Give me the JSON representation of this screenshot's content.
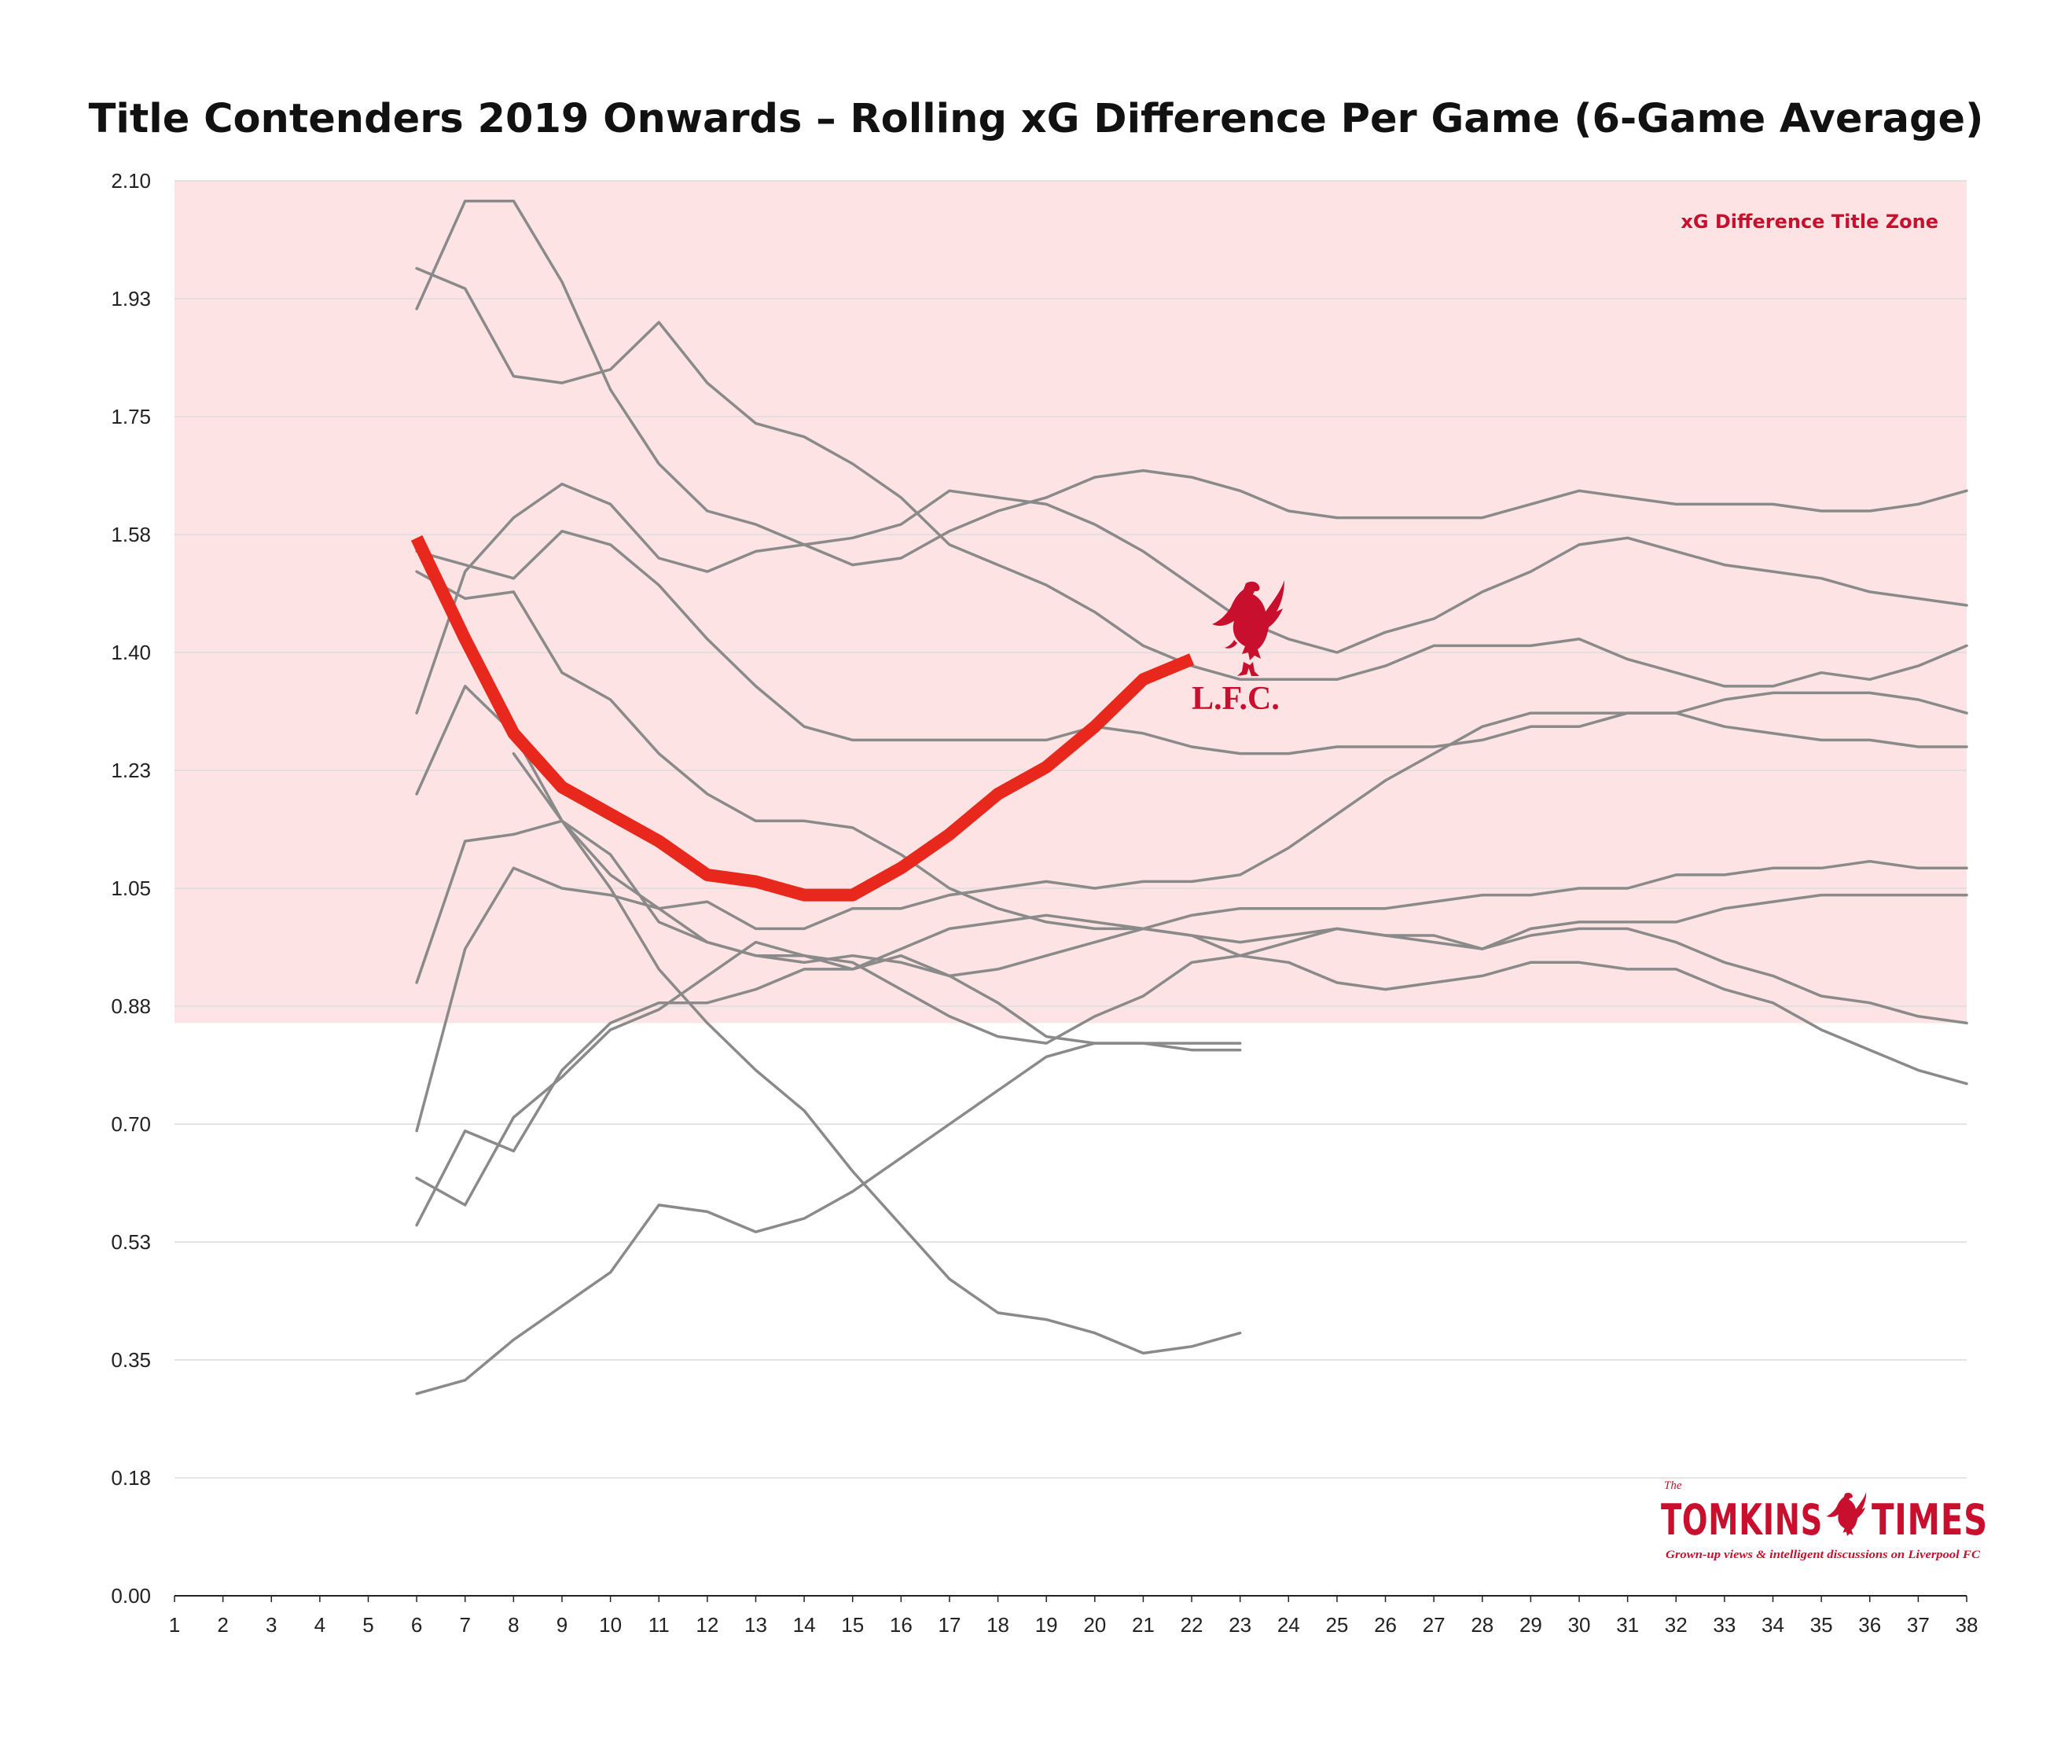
{
  "colors": {
    "zone_fill": "#fde3e3",
    "zone_text": "#c8102e",
    "highlight": "#e8281c",
    "other_series": "#8a8a8a",
    "grid": "#dcdcdc",
    "axis": "#222222",
    "brand": "#c8102e"
  },
  "logos": {
    "lfc_wordmark": "L.F.C.",
    "brand_prefix": "The",
    "brand_name": "TOMKINS",
    "brand_name_2": "TIMES",
    "brand_tagline": "Grown-up views & intelligent discussions on Liverpool FC"
  },
  "chart_data": {
    "type": "line",
    "title": "Title Contenders 2019 Onwards – Rolling xG Difference Per Game (6-Game Average)",
    "xlabel": "",
    "ylabel": "",
    "xlim": [
      1,
      38
    ],
    "ylim": [
      0,
      2.1
    ],
    "x_ticks": [
      1,
      2,
      3,
      4,
      5,
      6,
      7,
      8,
      9,
      10,
      11,
      12,
      13,
      14,
      15,
      16,
      17,
      18,
      19,
      20,
      21,
      22,
      23,
      24,
      25,
      26,
      27,
      28,
      29,
      30,
      31,
      32,
      33,
      34,
      35,
      36,
      37,
      38
    ],
    "y_ticks": [
      "0.00",
      "0.18",
      "0.35",
      "0.53",
      "0.70",
      "0.88",
      "1.05",
      "1.23",
      "1.40",
      "1.58",
      "1.75",
      "1.93",
      "2.10"
    ],
    "y_tick_values": [
      0,
      0.175,
      0.35,
      0.525,
      0.7,
      0.875,
      1.05,
      1.225,
      1.4,
      1.575,
      1.75,
      1.925,
      2.1
    ],
    "grid": true,
    "zone": {
      "label": "xG Difference Title Zone",
      "y_from": 0.85,
      "y_to": 2.1
    },
    "highlight_series": {
      "x": [
        6,
        7,
        8,
        9,
        10,
        11,
        12,
        13,
        14,
        15,
        16,
        17,
        18,
        19,
        20,
        21,
        22
      ],
      "values": [
        1.57,
        1.42,
        1.28,
        1.2,
        1.16,
        1.12,
        1.07,
        1.06,
        1.04,
        1.04,
        1.08,
        1.13,
        1.19,
        1.23,
        1.29,
        1.36,
        1.39
      ]
    },
    "other_series": [
      {
        "x": [
          6,
          7,
          8,
          9,
          10,
          11,
          12,
          13,
          14,
          15,
          16,
          17,
          18,
          19,
          20,
          21,
          22,
          23,
          24,
          25,
          26,
          27,
          28,
          29,
          30,
          31,
          32,
          33,
          34,
          35,
          36,
          37,
          38
        ],
        "values": [
          1.91,
          2.07,
          2.07,
          1.95,
          1.79,
          1.68,
          1.61,
          1.59,
          1.56,
          1.53,
          1.54,
          1.58,
          1.61,
          1.63,
          1.66,
          1.67,
          1.66,
          1.64,
          1.61,
          1.6,
          1.6,
          1.6,
          1.6,
          1.62,
          1.64,
          1.63,
          1.62,
          1.62,
          1.62,
          1.61,
          1.61,
          1.62,
          1.64
        ]
      },
      {
        "x": [
          6,
          7,
          8,
          9,
          10,
          11,
          12,
          13,
          14,
          15,
          16,
          17,
          18,
          19,
          20,
          21,
          22,
          23,
          24,
          25,
          26,
          27,
          28,
          29,
          30,
          31,
          32,
          33,
          34,
          35,
          36,
          37,
          38
        ],
        "values": [
          1.97,
          1.94,
          1.81,
          1.8,
          1.82,
          1.89,
          1.8,
          1.74,
          1.72,
          1.68,
          1.63,
          1.56,
          1.53,
          1.5,
          1.46,
          1.41,
          1.38,
          1.36,
          1.36,
          1.36,
          1.38,
          1.41,
          1.41,
          1.41,
          1.42,
          1.39,
          1.37,
          1.35,
          1.35,
          1.37,
          1.36,
          1.38,
          1.41
        ]
      },
      {
        "x": [
          6,
          7,
          8,
          9,
          10,
          11,
          12,
          13,
          14,
          15,
          16,
          17,
          18,
          19,
          20,
          21,
          22,
          23,
          24,
          25,
          26,
          27,
          28,
          29,
          30,
          31,
          32,
          33,
          34,
          35,
          36,
          37,
          38
        ],
        "values": [
          1.31,
          1.52,
          1.6,
          1.65,
          1.62,
          1.54,
          1.52,
          1.55,
          1.56,
          1.57,
          1.59,
          1.64,
          1.63,
          1.62,
          1.59,
          1.55,
          1.5,
          1.45,
          1.42,
          1.4,
          1.43,
          1.45,
          1.49,
          1.52,
          1.56,
          1.57,
          1.55,
          1.53,
          1.52,
          1.51,
          1.49,
          1.48,
          1.47
        ]
      },
      {
        "x": [
          6,
          7,
          8,
          9,
          10,
          11,
          12,
          13,
          14,
          15,
          16,
          17,
          18,
          19,
          20,
          21,
          22,
          23,
          24,
          25,
          26,
          27,
          28,
          29,
          30,
          31,
          32,
          33,
          34,
          35,
          36,
          37,
          38
        ],
        "values": [
          1.55,
          1.53,
          1.51,
          1.58,
          1.56,
          1.5,
          1.42,
          1.35,
          1.29,
          1.27,
          1.27,
          1.27,
          1.27,
          1.27,
          1.29,
          1.28,
          1.26,
          1.25,
          1.25,
          1.26,
          1.26,
          1.26,
          1.27,
          1.29,
          1.29,
          1.31,
          1.31,
          1.29,
          1.28,
          1.27,
          1.27,
          1.26,
          1.26
        ]
      },
      {
        "x": [
          6,
          7,
          8,
          9,
          10,
          11,
          12,
          13,
          14,
          15,
          16,
          17,
          18,
          19,
          20,
          21,
          22,
          23,
          24,
          25,
          26,
          27,
          28,
          29,
          30,
          31,
          32,
          33,
          34,
          35,
          36,
          37,
          38
        ],
        "values": [
          1.52,
          1.48,
          1.49,
          1.37,
          1.33,
          1.25,
          1.19,
          1.15,
          1.15,
          1.14,
          1.1,
          1.05,
          1.02,
          1.0,
          0.99,
          0.99,
          0.98,
          0.97,
          0.98,
          0.99,
          0.98,
          0.98,
          0.96,
          0.99,
          1.0,
          1.0,
          1.0,
          1.02,
          1.03,
          1.04,
          1.04,
          1.04,
          1.04
        ]
      },
      {
        "x": [
          6,
          7,
          8,
          9,
          10,
          11,
          12,
          13,
          14,
          15,
          16,
          17,
          18,
          19,
          20,
          21,
          22,
          23,
          24,
          25,
          26,
          27,
          28,
          29,
          30,
          31,
          32,
          33,
          34,
          35,
          36,
          37,
          38
        ],
        "values": [
          1.19,
          1.35,
          1.28,
          1.15,
          1.1,
          1.0,
          0.97,
          0.95,
          0.95,
          0.94,
          0.9,
          0.86,
          0.83,
          0.82,
          0.86,
          0.89,
          0.94,
          0.95,
          0.97,
          0.99,
          0.98,
          0.97,
          0.96,
          0.98,
          0.99,
          0.99,
          0.97,
          0.94,
          0.92,
          0.89,
          0.88,
          0.86,
          0.85
        ]
      },
      {
        "x": [
          6,
          7,
          8,
          9,
          10,
          11,
          12,
          13,
          14,
          15,
          16,
          17,
          18,
          19,
          20,
          21,
          22,
          23,
          24,
          25,
          26,
          27,
          28,
          29,
          30,
          31,
          32,
          33,
          34,
          35,
          36,
          37,
          38
        ],
        "values": [
          0.91,
          1.12,
          1.13,
          1.15,
          1.07,
          1.02,
          1.03,
          0.99,
          0.99,
          1.02,
          1.02,
          1.04,
          1.05,
          1.06,
          1.05,
          1.06,
          1.06,
          1.07,
          1.11,
          1.16,
          1.21,
          1.25,
          1.29,
          1.31,
          1.31,
          1.31,
          1.31,
          1.33,
          1.34,
          1.34,
          1.34,
          1.33,
          1.31
        ]
      },
      {
        "x": [
          6,
          7,
          8,
          9,
          10,
          11,
          12,
          13,
          14,
          15,
          16,
          17,
          18,
          19,
          20,
          21,
          22,
          23,
          24,
          25,
          26,
          27,
          28,
          29,
          30,
          31,
          32,
          33,
          34,
          35,
          36,
          37,
          38
        ],
        "values": [
          0.69,
          0.96,
          1.08,
          1.05,
          1.04,
          1.02,
          0.97,
          0.95,
          0.94,
          0.95,
          0.94,
          0.92,
          0.93,
          0.95,
          0.97,
          0.99,
          1.01,
          1.02,
          1.02,
          1.02,
          1.02,
          1.03,
          1.04,
          1.04,
          1.05,
          1.05,
          1.07,
          1.07,
          1.08,
          1.08,
          1.09,
          1.08,
          1.08
        ]
      },
      {
        "x": [
          6,
          7,
          8,
          9,
          10,
          11,
          12,
          13,
          14,
          15,
          16,
          17,
          18,
          19,
          20,
          21,
          22,
          23,
          24,
          25,
          26,
          27,
          28,
          29,
          30,
          31,
          32,
          33,
          34,
          35,
          36,
          37,
          38
        ],
        "values": [
          0.62,
          0.58,
          0.71,
          0.77,
          0.84,
          0.87,
          0.92,
          0.97,
          0.95,
          0.93,
          0.96,
          0.99,
          1.0,
          1.01,
          1.0,
          0.99,
          0.98,
          0.95,
          0.94,
          0.91,
          0.9,
          0.91,
          0.92,
          0.94,
          0.94,
          0.93,
          0.93,
          0.9,
          0.88,
          0.84,
          0.81,
          0.78,
          0.76
        ]
      },
      {
        "x": [
          6,
          7,
          8,
          9,
          10,
          11,
          12,
          13,
          14,
          15,
          16,
          17,
          18,
          19,
          20,
          21,
          22,
          23
        ],
        "values": [
          0.55,
          0.69,
          0.66,
          0.78,
          0.85,
          0.88,
          0.88,
          0.9,
          0.93,
          0.93,
          0.95,
          0.92,
          0.88,
          0.83,
          0.82,
          0.82,
          0.82,
          0.82
        ]
      },
      {
        "x": [
          6,
          7,
          8,
          9,
          10,
          11,
          12,
          13,
          14,
          15,
          16,
          17,
          18,
          19,
          20,
          21,
          22,
          23
        ],
        "values": [
          0.3,
          0.32,
          0.38,
          0.43,
          0.48,
          0.58,
          0.57,
          0.54,
          0.56,
          0.6,
          0.65,
          0.7,
          0.75,
          0.8,
          0.82,
          0.82,
          0.81,
          0.81
        ]
      },
      {
        "x": [
          8,
          9,
          10,
          11,
          12,
          13,
          14,
          15,
          16,
          17,
          18,
          19,
          20,
          21,
          22,
          23
        ],
        "values": [
          1.25,
          1.15,
          1.05,
          0.93,
          0.85,
          0.78,
          0.72,
          0.63,
          0.55,
          0.47,
          0.42,
          0.41,
          0.39,
          0.36,
          0.37,
          0.39
        ]
      }
    ]
  }
}
